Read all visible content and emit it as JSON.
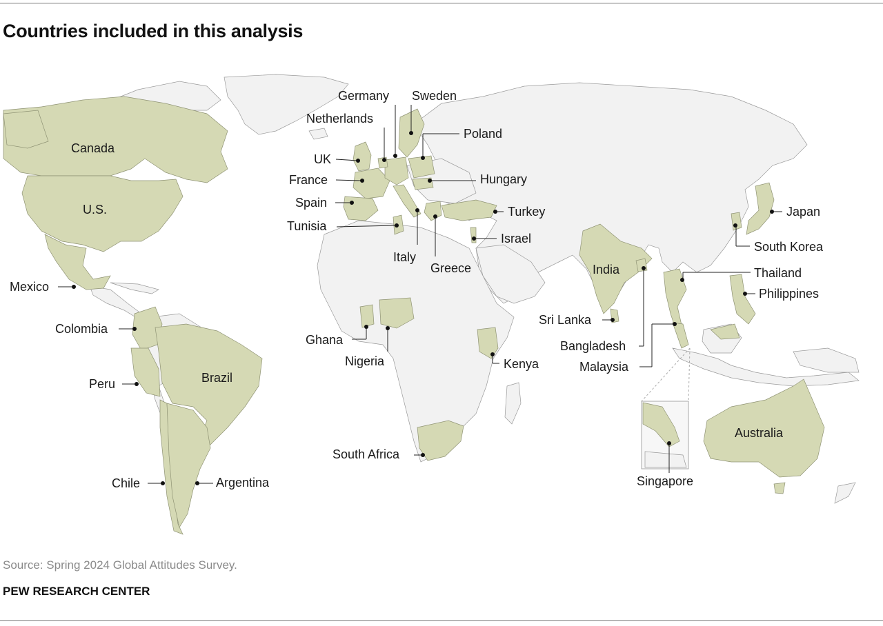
{
  "title": "Countries included in this analysis",
  "source": "Source: Spring 2024 Global Attitudes Survey.",
  "organization": "PEW RESEARCH CENTER",
  "colors": {
    "included": "#d5d9b4",
    "other_land": "#f2f2f2",
    "border": "#9a9a9a"
  },
  "countries": [
    "Canada",
    "U.S.",
    "Mexico",
    "Colombia",
    "Peru",
    "Brazil",
    "Chile",
    "Argentina",
    "UK",
    "France",
    "Spain",
    "Tunisia",
    "Italy",
    "Greece",
    "Germany",
    "Netherlands",
    "Sweden",
    "Poland",
    "Hungary",
    "Turkey",
    "Israel",
    "Ghana",
    "Nigeria",
    "Kenya",
    "South Africa",
    "India",
    "Sri Lanka",
    "Bangladesh",
    "Malaysia",
    "Singapore",
    "Thailand",
    "Philippines",
    "South Korea",
    "Japan",
    "Australia"
  ]
}
